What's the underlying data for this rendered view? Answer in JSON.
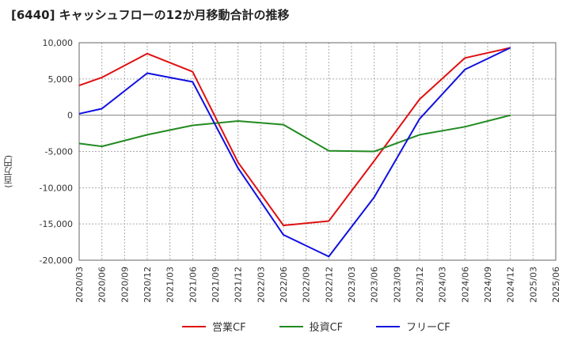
{
  "chart_data": {
    "type": "line",
    "title": "[6440]  キャッシュフローの12か月移動合計の推移",
    "ylabel": "(百万円)",
    "xlabel": "",
    "ylim": [
      -20000,
      10000
    ],
    "yticks": [
      10000,
      5000,
      0,
      -5000,
      -10000,
      -15000,
      -20000
    ],
    "ytick_labels": [
      "10,000",
      "5,000",
      "0",
      "-5,000",
      "-10,000",
      "-15,000",
      "-20,000"
    ],
    "categories": [
      "2020/03",
      "2020/06",
      "2020/09",
      "2020/12",
      "2021/03",
      "2021/06",
      "2021/09",
      "2021/12",
      "2022/03",
      "2022/06",
      "2022/09",
      "2022/12",
      "2023/03",
      "2023/06",
      "2023/09",
      "2023/12",
      "2024/03",
      "2024/06",
      "2024/09",
      "2024/12",
      "2025/03",
      "2025/06"
    ],
    "series": [
      {
        "name": "営業CF",
        "color": "#e01010",
        "values": [
          4100,
          5200,
          null,
          8500,
          null,
          6000,
          null,
          -6500,
          null,
          -15200,
          null,
          -14600,
          null,
          -6300,
          null,
          2200,
          null,
          7900,
          null,
          9300,
          null,
          null
        ]
      },
      {
        "name": "投資CF",
        "color": "#228b22",
        "values": [
          -3900,
          -4300,
          null,
          -2700,
          null,
          -1400,
          null,
          -800,
          null,
          -1300,
          null,
          -4900,
          null,
          -5000,
          null,
          -2700,
          null,
          -1600,
          null,
          0,
          null,
          null
        ]
      },
      {
        "name": "フリーCF",
        "color": "#1010e0",
        "values": [
          200,
          900,
          null,
          5800,
          null,
          4600,
          null,
          -7300,
          null,
          -16500,
          null,
          -19500,
          null,
          -11300,
          null,
          -500,
          null,
          6300,
          null,
          9300,
          null,
          null
        ]
      }
    ],
    "legend_position": "bottom",
    "grid": true
  }
}
